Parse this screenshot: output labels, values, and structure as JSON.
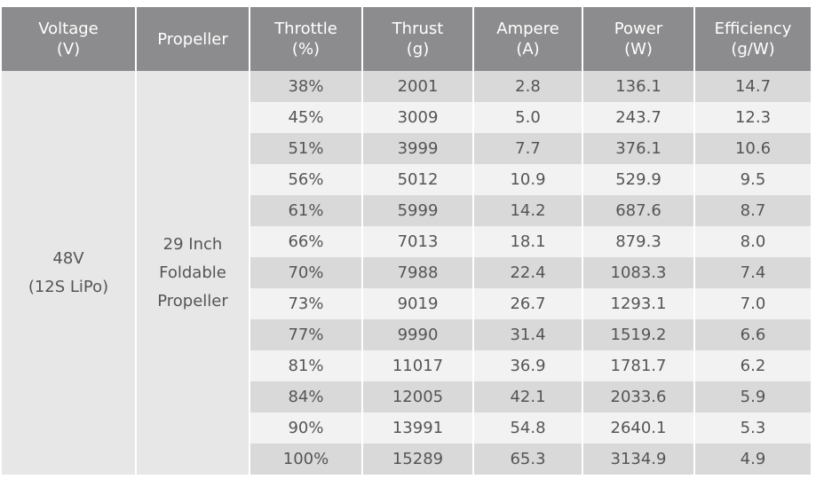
{
  "table": {
    "header": [
      [
        "Voltage",
        "(V)"
      ],
      [
        "Propeller"
      ],
      [
        "Throttle",
        "(%)"
      ],
      [
        "Thrust",
        "(g)"
      ],
      [
        "Ampere",
        "(A)"
      ],
      [
        "Power",
        "(W)"
      ],
      [
        "Efficiency",
        "(g/W)"
      ]
    ],
    "voltage": [
      "48V",
      "(12S LiPo)"
    ],
    "propeller": [
      "29 Inch",
      "Foldable",
      "Propeller"
    ],
    "rows": [
      [
        "38%",
        "2001",
        "2.8",
        "136.1",
        "14.7"
      ],
      [
        "45%",
        "3009",
        "5.0",
        "243.7",
        "12.3"
      ],
      [
        "51%",
        "3999",
        "7.7",
        "376.1",
        "10.6"
      ],
      [
        "56%",
        "5012",
        "10.9",
        "529.9",
        "9.5"
      ],
      [
        "61%",
        "5999",
        "14.2",
        "687.6",
        "8.7"
      ],
      [
        "66%",
        "7013",
        "18.1",
        "879.3",
        "8.0"
      ],
      [
        "70%",
        "7988",
        "22.4",
        "1083.3",
        "7.4"
      ],
      [
        "73%",
        "9019",
        "26.7",
        "1293.1",
        "7.0"
      ],
      [
        "77%",
        "9990",
        "31.4",
        "1519.2",
        "6.6"
      ],
      [
        "81%",
        "11017",
        "36.9",
        "1781.7",
        "6.2"
      ],
      [
        "84%",
        "12005",
        "42.1",
        "2033.6",
        "5.9"
      ],
      [
        "90%",
        "13991",
        "54.8",
        "2640.1",
        "5.3"
      ],
      [
        "100%",
        "15289",
        "65.3",
        "3134.9",
        "4.9"
      ]
    ]
  }
}
